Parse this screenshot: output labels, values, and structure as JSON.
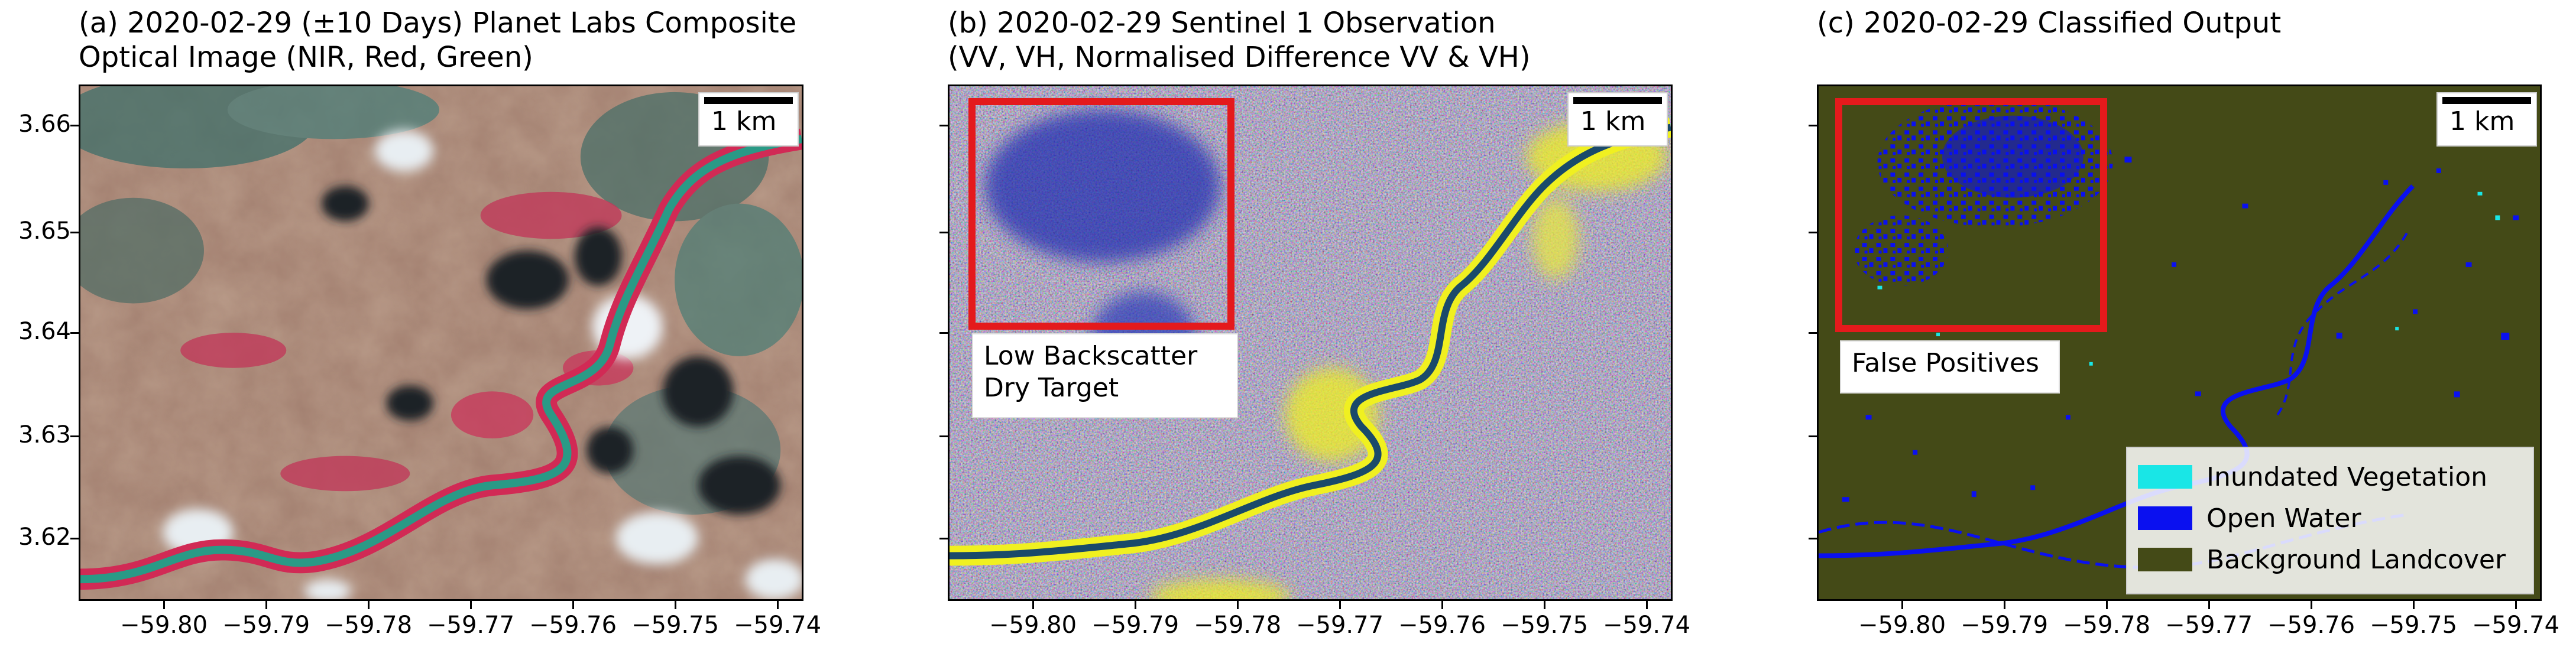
{
  "panels": [
    {
      "title_line1": "(a) 2020-02-29 (±10 Days) Planet Labs Composite",
      "title_line2": "Optical Image (NIR, Red, Green)",
      "scale": "1 km"
    },
    {
      "title_line1": "(b) 2020-02-29 Sentinel 1 Observation",
      "title_line2": "(VV, VH, Normalised Difference VV & VH)",
      "scale": "1 km",
      "annotation_line1": "Low Backscatter",
      "annotation_line2": "Dry Target"
    },
    {
      "title_line1": "(c) 2020-02-29 Classified Output",
      "scale": "1 km",
      "annotation": "False Positives"
    }
  ],
  "y_ticks": [
    "3.66",
    "3.65",
    "3.64",
    "3.63",
    "3.62"
  ],
  "x_ticks": [
    "−59.80",
    "−59.79",
    "−59.78",
    "−59.77",
    "−59.76",
    "−59.75",
    "−59.74"
  ],
  "legend": {
    "items": [
      {
        "label": "Inundated Vegetation",
        "color": "#19e6e6"
      },
      {
        "label": "Open Water",
        "color": "#0a10f0"
      },
      {
        "label": "Background Landcover",
        "color": "#444a17"
      }
    ]
  },
  "colors": {
    "highlight_box": "#e41a1c",
    "river_optical": "#2a9a86",
    "river_sar": "#f0f020"
  }
}
